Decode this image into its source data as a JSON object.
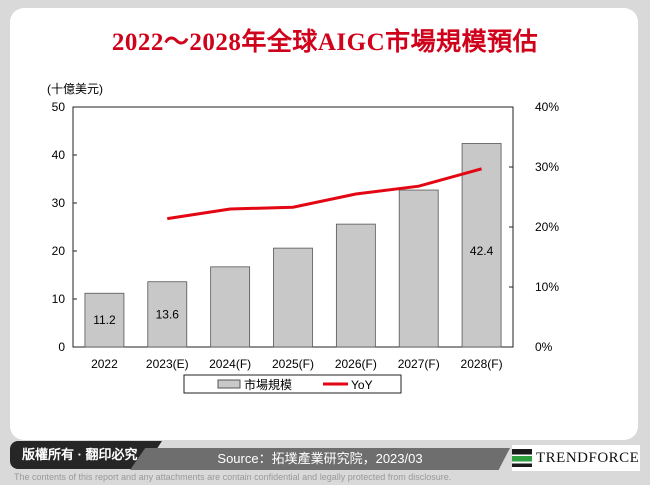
{
  "title": "2022～2028年全球AIGC市場規模預估",
  "chart_data": {
    "type": "bar+line",
    "title": "2022～2028年全球AIGC市場規模預估",
    "unit_label": "(十億美元)",
    "categories": [
      "2022",
      "2023(E)",
      "2024(F)",
      "2025(F)",
      "2026(F)",
      "2027(F)",
      "2028(F)"
    ],
    "series": [
      {
        "name": "市場規模",
        "type": "bar",
        "axis": "left",
        "values": [
          11.2,
          13.6,
          16.7,
          20.6,
          25.6,
          32.7,
          42.4
        ],
        "color": "#c8c8c8"
      },
      {
        "name": "YoY",
        "type": "line",
        "axis": "right",
        "values": [
          null,
          21.4,
          23.0,
          23.3,
          25.5,
          26.8,
          29.7
        ],
        "color": "#e30613"
      }
    ],
    "data_labels": {
      "0": "11.2",
      "1": "13.6",
      "6": "42.4"
    },
    "ylim": [
      0,
      50
    ],
    "yticks": [
      "0",
      "10",
      "20",
      "30",
      "40",
      "50"
    ],
    "y2lim": [
      0,
      40
    ],
    "y2ticks": [
      "0%",
      "10%",
      "20%",
      "30%",
      "40%"
    ],
    "legend": "bottom"
  },
  "footer": {
    "copyright": "版權所有 · 翻印必究",
    "source": "Source：拓墣產業研究院，2023/03",
    "logo": "TRENDFORCE",
    "disclaimer": "The contents of this report and any attachments are contain confidential and legally protected from disclosure."
  }
}
